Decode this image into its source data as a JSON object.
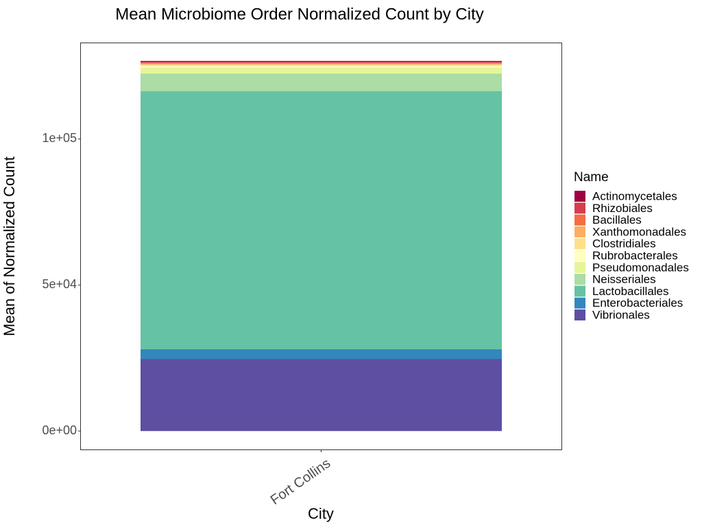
{
  "chart_data": {
    "type": "bar",
    "stacked": true,
    "title": "Mean Microbiome Order Normalized Count by City",
    "xlabel": "City",
    "ylabel": "Mean of Normalized Count",
    "categories": [
      "Fort Collins"
    ],
    "ylim": [
      -6300,
      133000
    ],
    "yticks": [
      0,
      50000,
      100000
    ],
    "ytick_labels": [
      "0e+00",
      "5e+04",
      "1e+05"
    ],
    "grid": false,
    "legend": {
      "title": "Name",
      "position": "right"
    },
    "series": [
      {
        "name": "Vibrionales",
        "values": [
          24700
        ],
        "color": "#5E4FA2"
      },
      {
        "name": "Enterobacteriales",
        "values": [
          3300
        ],
        "color": "#3288BD"
      },
      {
        "name": "Lactobacillales",
        "values": [
          88400
        ],
        "color": "#66C2A5"
      },
      {
        "name": "Neisseriales",
        "values": [
          6000
        ],
        "color": "#ABDDA4"
      },
      {
        "name": "Pseudomonadales",
        "values": [
          2100
        ],
        "color": "#E6F598"
      },
      {
        "name": "Rubrobacterales",
        "values": [
          500
        ],
        "color": "#FFFFBF"
      },
      {
        "name": "Clostridiales",
        "values": [
          400
        ],
        "color": "#FEE08B"
      },
      {
        "name": "Xanthomonadales",
        "values": [
          400
        ],
        "color": "#FDAE61"
      },
      {
        "name": "Bacillales",
        "values": [
          300
        ],
        "color": "#F46D43"
      },
      {
        "name": "Rhizobiales",
        "values": [
          300
        ],
        "color": "#D53E4F"
      },
      {
        "name": "Actinomycetales",
        "values": [
          300
        ],
        "color": "#9E0142"
      }
    ],
    "legend_order": [
      "Actinomycetales",
      "Rhizobiales",
      "Bacillales",
      "Xanthomonadales",
      "Clostridiales",
      "Rubrobacterales",
      "Pseudomonadales",
      "Neisseriales",
      "Lactobacillales",
      "Enterobacteriales",
      "Vibrionales"
    ]
  }
}
